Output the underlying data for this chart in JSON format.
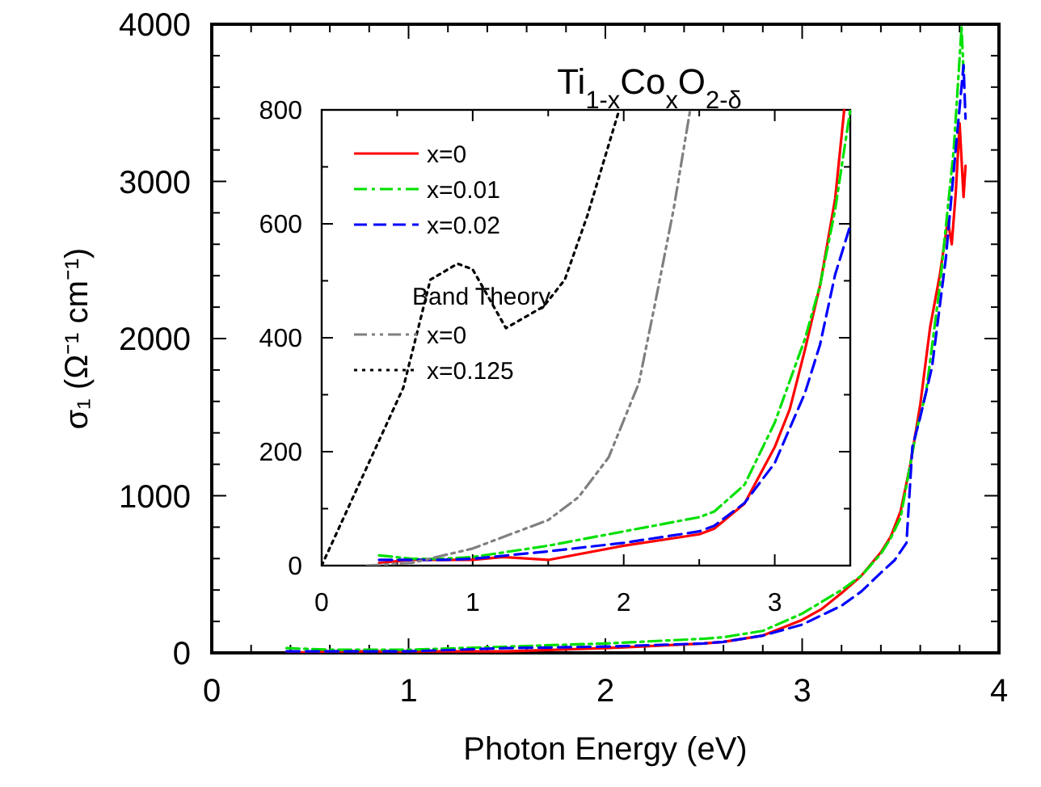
{
  "chart_data": [
    {
      "type": "line",
      "xlabel": "Photon Energy (eV)",
      "ylabel": "σ₁ (Ω⁻¹ cm⁻¹)",
      "xlim": [
        0,
        4
      ],
      "ylim": [
        0,
        4000
      ],
      "xticks": [
        0,
        {
          "value": 0.2,
          "label": null
        },
        {
          "value": 0.4,
          "label": null
        },
        {
          "value": 0.6,
          "label": null
        },
        {
          "value": 0.8,
          "label": null
        },
        1,
        {
          "value": 1.2,
          "label": null
        },
        {
          "value": 1.4,
          "label": null
        },
        {
          "value": 1.6,
          "label": null
        },
        {
          "value": 1.8,
          "label": null
        },
        2,
        {
          "value": 2.2,
          "label": null
        },
        {
          "value": 2.4,
          "label": null
        },
        {
          "value": 2.6,
          "label": null
        },
        {
          "value": 2.8,
          "label": null
        },
        3,
        {
          "value": 3.2,
          "label": null
        },
        {
          "value": 3.4,
          "label": null
        },
        {
          "value": 3.6,
          "label": null
        },
        {
          "value": 3.8,
          "label": null
        },
        4
      ],
      "yticks": [
        0,
        {
          "value": 200,
          "label": null
        },
        {
          "value": 400,
          "label": null
        },
        {
          "value": 600,
          "label": null
        },
        {
          "value": 800,
          "label": null
        },
        1000,
        {
          "value": 1200,
          "label": null
        },
        {
          "value": 1400,
          "label": null
        },
        {
          "value": 1600,
          "label": null
        },
        {
          "value": 1800,
          "label": null
        },
        2000,
        {
          "value": 2200,
          "label": null
        },
        {
          "value": 2400,
          "label": null
        },
        {
          "value": 2600,
          "label": null
        },
        {
          "value": 2800,
          "label": null
        },
        3000,
        {
          "value": 3200,
          "label": null
        },
        {
          "value": 3400,
          "label": null
        },
        {
          "value": 3600,
          "label": null
        },
        {
          "value": 3800,
          "label": null
        },
        4000
      ],
      "series": [
        {
          "color": "#ff0000",
          "line_style": "solid",
          "x": [
            0.38,
            0.6,
            0.8,
            1.0,
            1.2,
            1.5,
            2.0,
            2.5,
            2.6,
            2.8,
            3.0,
            3.1,
            3.2,
            3.3,
            3.4,
            3.45,
            3.5,
            3.55,
            3.6,
            3.65,
            3.7,
            3.74,
            3.76,
            3.78,
            3.8,
            3.82,
            3.83
          ],
          "values": [
            0,
            10,
            10,
            10,
            10,
            10,
            30,
            60,
            70,
            110,
            210,
            280,
            380,
            490,
            640,
            740,
            900,
            1200,
            1580,
            2070,
            2410,
            2750,
            2600,
            2920,
            3370,
            2900,
            3100
          ]
        },
        {
          "color": "#00e000",
          "line_style": "dashdot",
          "x": [
            0.38,
            0.6,
            0.8,
            1.0,
            1.5,
            2.0,
            2.5,
            2.6,
            2.8,
            3.0,
            3.2,
            3.3,
            3.4,
            3.45,
            3.5,
            3.58,
            3.63,
            3.7,
            3.77,
            3.81,
            3.82
          ],
          "values": [
            30,
            20,
            20,
            20,
            40,
            60,
            90,
            100,
            140,
            250,
            400,
            490,
            630,
            730,
            860,
            1410,
            1660,
            2340,
            3200,
            3980,
            3700
          ]
        },
        {
          "color": "#0000ff",
          "line_style": "dashed",
          "x": [
            0.38,
            0.6,
            0.8,
            1.0,
            1.5,
            2.0,
            2.5,
            2.6,
            2.8,
            3.0,
            3.2,
            3.3,
            3.4,
            3.47,
            3.53,
            3.56,
            3.6,
            3.66,
            3.73,
            3.78,
            3.82,
            3.83
          ],
          "values": [
            10,
            10,
            10,
            10,
            30,
            40,
            60,
            70,
            110,
            180,
            300,
            390,
            510,
            590,
            700,
            1310,
            1500,
            1820,
            2510,
            3200,
            3740,
            3400
          ]
        }
      ]
    },
    {
      "type": "line",
      "title": "Ti$_{1-x}$Co$_{x}$O$_{2-δ}$",
      "legend": "top left",
      "annotations": [
        "Band Theory"
      ],
      "xlim": [
        0,
        3.5
      ],
      "ylim": [
        0,
        800
      ],
      "xticks": [
        0,
        {
          "value": 0.5,
          "label": null
        },
        1,
        {
          "value": 1.5,
          "label": null
        },
        2,
        {
          "value": 2.5,
          "label": null
        },
        3
      ],
      "yticks": [
        0,
        {
          "value": 100,
          "label": null
        },
        200,
        {
          "value": 300,
          "label": null
        },
        400,
        {
          "value": 500,
          "label": null
        },
        600,
        {
          "value": 700,
          "label": null
        },
        800
      ],
      "series": [
        {
          "name": "x=0",
          "color": "#ff0000",
          "line_style": "solid",
          "x": [
            0.38,
            0.6,
            0.8,
            1.0,
            1.2,
            1.5,
            2.0,
            2.5,
            2.6,
            2.8,
            3.0,
            3.1,
            3.2,
            3.3,
            3.4,
            3.46
          ],
          "values": [
            5,
            10,
            10,
            10,
            15,
            10,
            35,
            55,
            65,
            109,
            208,
            275,
            379,
            492,
            644,
            800
          ]
        },
        {
          "name": "x=0.01",
          "color": "#00e000",
          "line_style": "dashdot",
          "x": [
            0.38,
            0.6,
            0.8,
            1.0,
            1.5,
            2.0,
            2.5,
            2.6,
            2.8,
            3.0,
            3.2,
            3.3,
            3.4,
            3.5
          ],
          "values": [
            18,
            12,
            12,
            15,
            35,
            60,
            85,
            95,
            142,
            251,
            398,
            492,
            625,
            800
          ]
        },
        {
          "name": "x=0.02",
          "color": "#0000ff",
          "line_style": "dashed",
          "x": [
            0.38,
            0.6,
            0.8,
            1.0,
            1.5,
            2.0,
            2.5,
            2.6,
            2.8,
            3.0,
            3.2,
            3.3,
            3.4,
            3.5
          ],
          "values": [
            10,
            10,
            10,
            12,
            25,
            40,
            60,
            70,
            110,
            180,
            303,
            388,
            511,
            597
          ]
        },
        {
          "name": "x=0",
          "color": "#808080",
          "line_style": "dashdotdot",
          "x": [
            0.3,
            0.6,
            1.0,
            1.2,
            1.5,
            1.7,
            1.9,
            2.1,
            2.2,
            2.33,
            2.44
          ],
          "values": [
            0,
            5,
            30,
            50,
            80,
            120,
            190,
            320,
            450,
            625,
            800
          ]
        },
        {
          "name": "x=0.125",
          "color": "#000000",
          "line_style": "dotted",
          "x": [
            0,
            0.54,
            0.72,
            0.9,
            1.0,
            1.22,
            1.47,
            1.61,
            1.76,
            1.97
          ],
          "values": [
            0,
            312,
            502,
            530,
            520,
            417,
            455,
            502,
            615,
            800
          ]
        }
      ]
    }
  ]
}
